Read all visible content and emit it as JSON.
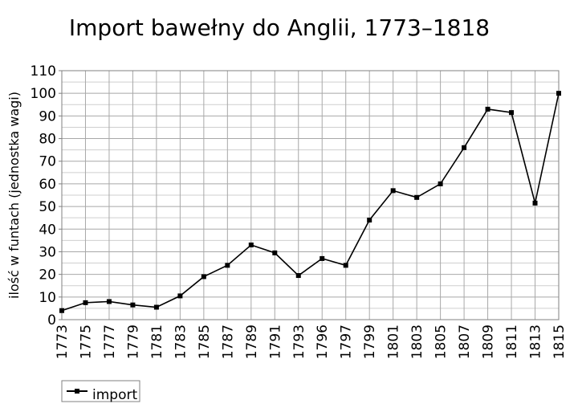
{
  "chart_data": {
    "type": "line",
    "title": "Import bawełny do Anglii, 1773–1818",
    "xlabel": "",
    "ylabel": "ilość w funtach (jednostka wagi)",
    "ylim": [
      0,
      110
    ],
    "yticks": [
      0,
      10,
      20,
      30,
      40,
      50,
      60,
      70,
      80,
      90,
      100,
      110
    ],
    "grid": true,
    "legend": "bottom-left",
    "categories": [
      "1773",
      "1775",
      "1777",
      "1779",
      "1781",
      "1783",
      "1785",
      "1787",
      "1789",
      "1791",
      "1793",
      "1796",
      "1797",
      "1799",
      "1801",
      "1803",
      "1805",
      "1807",
      "1809",
      "1811",
      "1813",
      "1815"
    ],
    "series": [
      {
        "name": "import",
        "values": [
          4,
          7.5,
          8,
          6.5,
          5.5,
          10.5,
          19,
          24,
          33,
          29.5,
          19.5,
          27,
          24,
          44,
          57,
          54,
          60,
          76,
          93,
          91.5,
          51.5,
          100
        ],
        "color": "#000000",
        "marker": "square"
      }
    ]
  }
}
